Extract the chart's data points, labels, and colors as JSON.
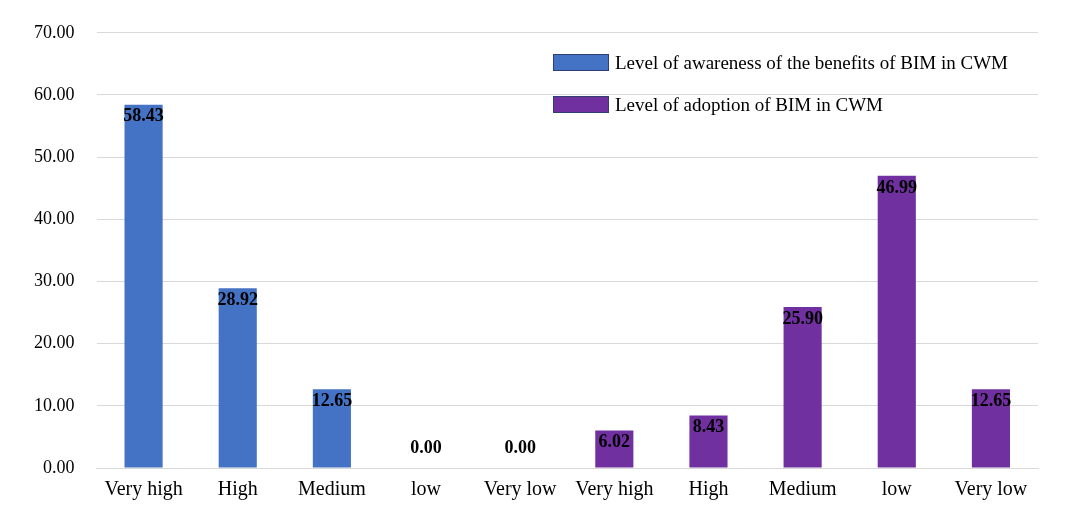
{
  "chart_data": {
    "type": "bar",
    "categories": [
      "Very high",
      "High",
      "Medium",
      "low",
      "Very low",
      "Very high",
      "High",
      "Medium",
      "low",
      "Very low"
    ],
    "series": [
      {
        "name": "Level of awareness of the benefits of BIM in CWM",
        "color": "#4472c4",
        "values": [
          58.43,
          28.92,
          12.65,
          0,
          0,
          null,
          null,
          null,
          null,
          null
        ],
        "value_labels": [
          "58.43",
          "28.92",
          "12.65",
          "0.00",
          "0.00",
          null,
          null,
          null,
          null,
          null
        ]
      },
      {
        "name": "Level of adoption of BIM in CWM",
        "color": "#7030a0",
        "values": [
          null,
          null,
          null,
          null,
          null,
          6.02,
          8.43,
          25.9,
          46.99,
          12.65
        ],
        "value_labels": [
          null,
          null,
          null,
          null,
          null,
          "6.02",
          "8.43",
          "25.90",
          "46.99",
          "12.65"
        ]
      }
    ],
    "ylim": [
      0,
      70
    ],
    "yticks": [
      {
        "value": 0,
        "label": "0.00"
      },
      {
        "value": 10,
        "label": "10.00"
      },
      {
        "value": 20,
        "label": "20.00"
      },
      {
        "value": 30,
        "label": "30.00"
      },
      {
        "value": 40,
        "label": "40.00"
      },
      {
        "value": 50,
        "label": "50.00"
      },
      {
        "value": 60,
        "label": "60.00"
      },
      {
        "value": 70,
        "label": "70.00"
      }
    ],
    "grid": "y",
    "legend": "top right"
  }
}
